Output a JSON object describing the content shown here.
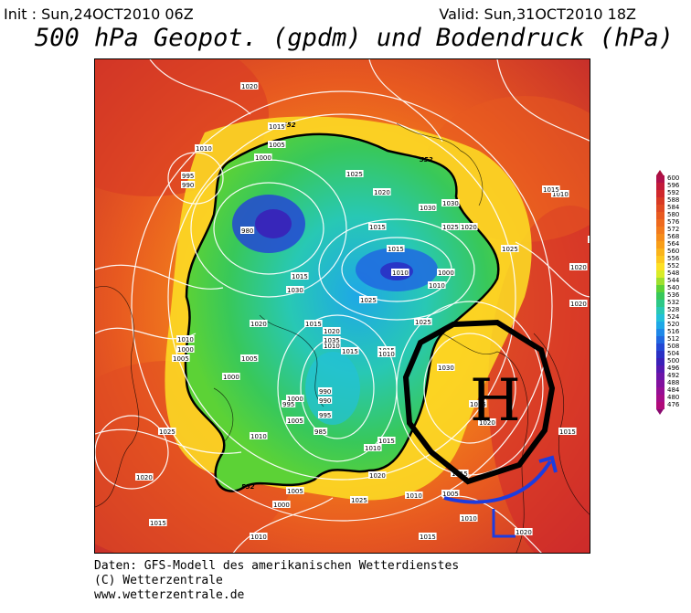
{
  "header": {
    "init": "Init : Sun,24OCT2010 06Z",
    "valid": "Valid: Sun,31OCT2010 18Z",
    "title": "500 hPa Geopot. (gpdm) und Bodendruck (hPa)"
  },
  "footer": {
    "line1": "Daten: GFS-Modell des amerikanischen Wetterdienstes",
    "line2": "(C) Wetterzentrale",
    "line3": "www.wetterzentrale.de"
  },
  "legend": {
    "levels": [
      {
        "label": "600",
        "color": "#b0104a"
      },
      {
        "label": "596",
        "color": "#c21a3a"
      },
      {
        "label": "592",
        "color": "#d0282c"
      },
      {
        "label": "588",
        "color": "#d83a24"
      },
      {
        "label": "584",
        "color": "#e04a22"
      },
      {
        "label": "580",
        "color": "#e85a20"
      },
      {
        "label": "576",
        "color": "#ee6a1e"
      },
      {
        "label": "572",
        "color": "#f27a1c"
      },
      {
        "label": "568",
        "color": "#f58c1a"
      },
      {
        "label": "564",
        "color": "#f89e18"
      },
      {
        "label": "560",
        "color": "#fab41a"
      },
      {
        "label": "556",
        "color": "#fcc81e"
      },
      {
        "label": "552",
        "color": "#fde024"
      },
      {
        "label": "548",
        "color": "#d8ec28"
      },
      {
        "label": "544",
        "color": "#9ee02e"
      },
      {
        "label": "540",
        "color": "#5cd236"
      },
      {
        "label": "536",
        "color": "#38c85a"
      },
      {
        "label": "532",
        "color": "#2cc888"
      },
      {
        "label": "528",
        "color": "#28c8b4"
      },
      {
        "label": "524",
        "color": "#22c0d8"
      },
      {
        "label": "520",
        "color": "#1ea8e6"
      },
      {
        "label": "516",
        "color": "#1e88e8"
      },
      {
        "label": "512",
        "color": "#2068e0"
      },
      {
        "label": "508",
        "color": "#2448d4"
      },
      {
        "label": "504",
        "color": "#2a30c4"
      },
      {
        "label": "500",
        "color": "#3a20b8"
      },
      {
        "label": "496",
        "color": "#5418b0"
      },
      {
        "label": "492",
        "color": "#6c14a8"
      },
      {
        "label": "488",
        "color": "#82109e"
      },
      {
        "label": "484",
        "color": "#960e94"
      },
      {
        "label": "480",
        "color": "#a60c88"
      },
      {
        "label": "476",
        "color": "#b00a7a"
      }
    ],
    "top_cap_color": "#a8103e",
    "bottom_cap_color": "#8a0a70"
  },
  "map": {
    "annotation": {
      "symbol": "H",
      "color": "#000000"
    },
    "arrow": {
      "color": "#1c3ce0"
    },
    "height_labels": [
      "552",
      "552",
      "552"
    ],
    "pressure_labels": [
      "1020",
      "1015",
      "1010",
      "1005",
      "1000",
      "995",
      "990",
      "980",
      "1010",
      "1030",
      "1025",
      "1020",
      "1015",
      "1030",
      "1025",
      "1020",
      "1015",
      "1000",
      "1010",
      "1015",
      "1025",
      "1020",
      "1015",
      "1010",
      "1005",
      "1000",
      "995",
      "990",
      "985",
      "1010",
      "1005",
      "1000",
      "995",
      "990",
      "1020",
      "1025",
      "1030",
      "1035",
      "1015",
      "1010",
      "1005",
      "1000",
      "1005",
      "1010",
      "1015",
      "1020",
      "1025",
      "1030",
      "1020",
      "1015",
      "1010",
      "1005",
      "1000",
      "1010",
      "1015",
      "1015",
      "1020",
      "1025",
      "1015",
      "1020",
      "1020",
      "1025",
      "1010",
      "1015",
      "1015",
      "1010",
      "1020",
      "1025",
      "1015",
      "1010"
    ]
  }
}
